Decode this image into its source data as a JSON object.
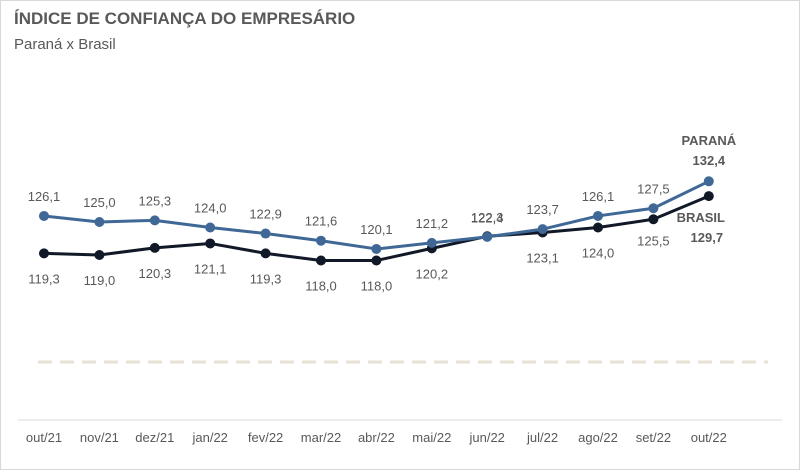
{
  "chart_data": {
    "type": "line",
    "title": "ÍNDICE DE CONFIANÇA DO EMPRESÁRIO",
    "subtitle": "Paraná x Brasil",
    "categories": [
      "out/21",
      "nov/21",
      "dez/21",
      "jan/22",
      "fev/22",
      "mar/22",
      "abr/22",
      "mai/22",
      "jun/22",
      "jul/22",
      "ago/22",
      "set/22",
      "out/22"
    ],
    "series": [
      {
        "name": "PARANÁ",
        "values": [
          126.1,
          125.0,
          125.3,
          124.0,
          122.9,
          121.6,
          120.1,
          121.2,
          122.3,
          123.7,
          126.1,
          127.5,
          132.4
        ],
        "labels": [
          "126,1",
          "125,0",
          "125,3",
          "124,0",
          "122,9",
          "121,6",
          "120,1",
          "121,2",
          "122,3",
          "123,7",
          "126,1",
          "127,5",
          "132,4"
        ],
        "color": "#3f6896"
      },
      {
        "name": "BRASIL",
        "values": [
          119.3,
          119.0,
          120.3,
          121.1,
          119.3,
          118.0,
          118.0,
          120.2,
          122.4,
          123.1,
          124.0,
          125.5,
          129.7
        ],
        "labels": [
          "119,3",
          "119,0",
          "120,3",
          "121,1",
          "119,3",
          "118,0",
          "118,0",
          "120,2",
          "122,4",
          "123,1",
          "124,0",
          "125,5",
          "129,7"
        ],
        "color": "#111827"
      }
    ],
    "grid": false,
    "legend": "none",
    "reference_line_color": "#e7e2d6",
    "axis_line_color": "#d9d9d9"
  }
}
